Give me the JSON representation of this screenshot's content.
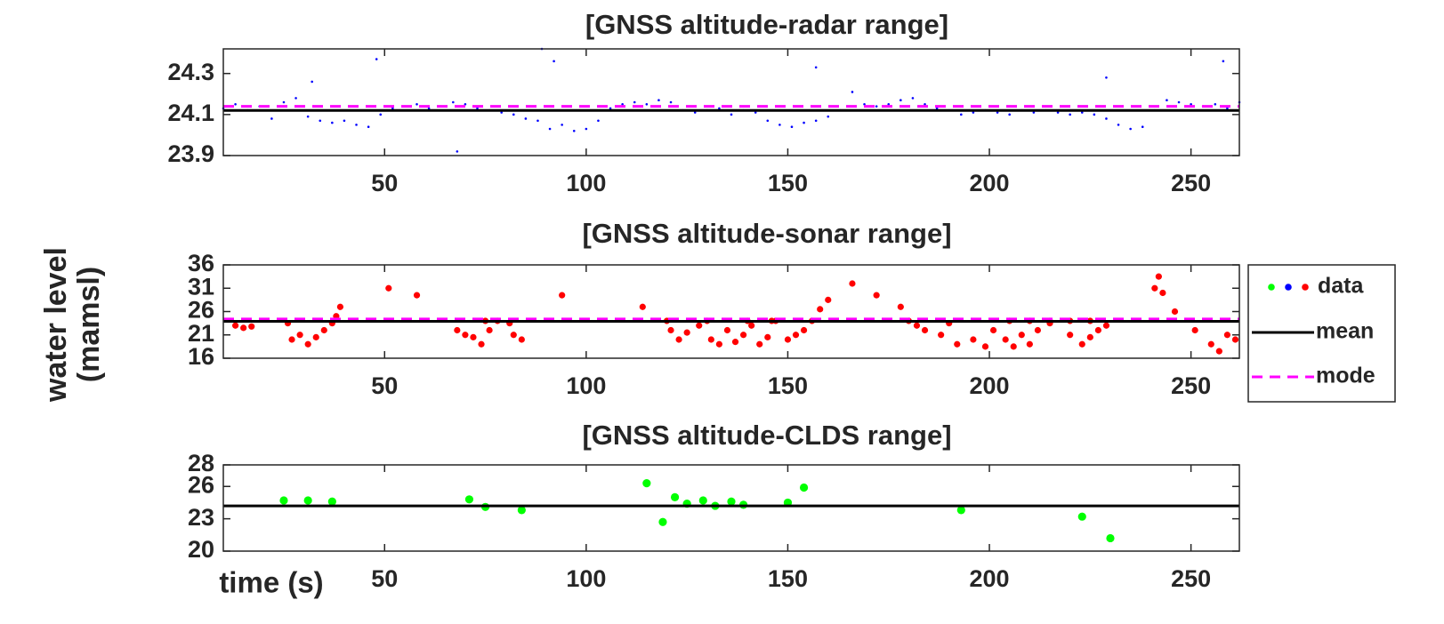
{
  "figure": {
    "ylabel": [
      "water level",
      "(mamsl)"
    ],
    "xlabel": "time (s)"
  },
  "chart_data": [
    {
      "type": "scatter",
      "title": "[GNSS altitude-radar range]",
      "xlim": [
        10,
        262
      ],
      "xticks": [
        50,
        100,
        150,
        200,
        250
      ],
      "ylim": [
        23.9,
        24.42
      ],
      "yticks": [
        23.9,
        24.1,
        24.3
      ],
      "series": [
        {
          "name": "data",
          "color": "#0000ff",
          "x": [
            10,
            13,
            16,
            19,
            22,
            25,
            28,
            31,
            34,
            37,
            40,
            43,
            46,
            49,
            52,
            55,
            58,
            61,
            64,
            67,
            70,
            73,
            76,
            79,
            82,
            85,
            88,
            91,
            94,
            97,
            100,
            103,
            106,
            109,
            112,
            115,
            118,
            121,
            124,
            127,
            130,
            133,
            136,
            139,
            142,
            145,
            148,
            151,
            154,
            157,
            160,
            163,
            166,
            169,
            172,
            175,
            178,
            181,
            184,
            187,
            190,
            193,
            196,
            199,
            202,
            205,
            208,
            211,
            214,
            217,
            220,
            223,
            226,
            229,
            232,
            235,
            238,
            241,
            244,
            247,
            250,
            253,
            256,
            259,
            262,
            32,
            48,
            68,
            89,
            92,
            157,
            229,
            258
          ],
          "values": [
            24.13,
            24.15,
            24.12,
            24.14,
            24.08,
            24.16,
            24.18,
            24.09,
            24.07,
            24.06,
            24.07,
            24.05,
            24.04,
            24.1,
            24.13,
            24.14,
            24.15,
            24.13,
            24.14,
            24.16,
            24.15,
            24.13,
            24.12,
            24.11,
            24.1,
            24.08,
            24.07,
            24.03,
            24.05,
            24.02,
            24.03,
            24.07,
            24.13,
            24.15,
            24.16,
            24.15,
            24.17,
            24.16,
            24.12,
            24.11,
            24.12,
            24.13,
            24.1,
            24.12,
            24.11,
            24.07,
            24.05,
            24.04,
            24.06,
            24.07,
            24.09,
            24.12,
            24.21,
            24.15,
            24.14,
            24.15,
            24.17,
            24.18,
            24.15,
            24.13,
            24.12,
            24.1,
            24.11,
            24.12,
            24.11,
            24.1,
            24.12,
            24.11,
            24.12,
            24.11,
            24.1,
            24.11,
            24.1,
            24.08,
            24.05,
            24.03,
            24.04,
            24.12,
            24.17,
            24.16,
            24.15,
            24.14,
            24.15,
            24.13,
            24.16,
            24.26,
            24.37,
            23.92,
            24.42,
            24.36,
            24.33,
            24.28,
            24.36
          ]
        }
      ],
      "mean": {
        "name": "mean",
        "value": 24.12,
        "color": "#000000"
      },
      "mode": {
        "name": "mode",
        "value": 24.14,
        "color": "#ff00ff"
      }
    },
    {
      "type": "scatter",
      "title": "[GNSS altitude-sonar range]",
      "xlim": [
        10,
        262
      ],
      "xticks": [
        50,
        100,
        150,
        200,
        250
      ],
      "ylim": [
        16,
        36
      ],
      "yticks": [
        16,
        21,
        26,
        31,
        36
      ],
      "series": [
        {
          "name": "data",
          "color": "#ff0000",
          "x": [
            13,
            15,
            17,
            26,
            27,
            29,
            31,
            33,
            35,
            37,
            38,
            39,
            51,
            58,
            68,
            70,
            72,
            74,
            76,
            78,
            81,
            82,
            84,
            94,
            114,
            121,
            123,
            125,
            128,
            131,
            133,
            135,
            137,
            139,
            141,
            143,
            145,
            147,
            150,
            152,
            154,
            156,
            158,
            160,
            166,
            172,
            178,
            180,
            182,
            184,
            188,
            190,
            192,
            196,
            199,
            201,
            204,
            206,
            208,
            210,
            212,
            215,
            220,
            223,
            225,
            227,
            229,
            241,
            242,
            243,
            246,
            251,
            255,
            257,
            259,
            261,
            75,
            120,
            130,
            140,
            146,
            205,
            210,
            215,
            220,
            225
          ],
          "values": [
            23,
            22.5,
            22.8,
            23.5,
            20,
            21,
            19,
            20.5,
            22,
            23.5,
            25,
            27,
            31,
            29.5,
            22,
            21,
            20.5,
            19,
            22,
            24,
            23.5,
            21,
            20,
            29.5,
            27,
            22,
            20,
            21.5,
            23,
            20,
            19,
            22,
            19.5,
            21,
            23,
            19,
            20.5,
            24,
            20,
            21,
            22,
            24,
            26.5,
            28.5,
            32,
            29.5,
            27,
            24,
            23,
            22,
            21,
            23.5,
            19,
            20,
            18.5,
            22,
            20,
            18.5,
            21,
            19,
            22,
            23.5,
            21,
            19,
            20.5,
            22,
            23,
            31,
            33.5,
            30,
            26,
            22,
            19,
            17.5,
            21,
            20,
            24,
            24,
            24,
            24,
            24,
            24,
            24,
            24,
            24,
            24
          ]
        }
      ],
      "mean": {
        "name": "mean",
        "value": 23.9,
        "color": "#000000"
      },
      "mode": {
        "name": "mode",
        "value": 24.4,
        "color": "#ff00ff"
      }
    },
    {
      "type": "scatter",
      "title": "[GNSS altitude-CLDS range]",
      "xlim": [
        10,
        262
      ],
      "xticks": [
        50,
        100,
        150,
        200,
        250
      ],
      "ylim": [
        20,
        28
      ],
      "yticks": [
        20,
        23,
        26,
        28
      ],
      "series": [
        {
          "name": "data",
          "color": "#00ff00",
          "x": [
            25,
            31,
            37,
            71,
            75,
            84,
            115,
            119,
            122,
            125,
            129,
            132,
            136,
            139,
            150,
            154,
            193,
            223,
            230
          ],
          "values": [
            24.7,
            24.7,
            24.6,
            24.8,
            24.1,
            23.8,
            26.3,
            22.7,
            25,
            24.4,
            24.7,
            24.2,
            24.6,
            24.3,
            24.5,
            25.9,
            23.8,
            23.2,
            21.2
          ]
        }
      ],
      "mean": {
        "name": "mean",
        "value": 24.2,
        "color": "#000000"
      }
    }
  ]
}
